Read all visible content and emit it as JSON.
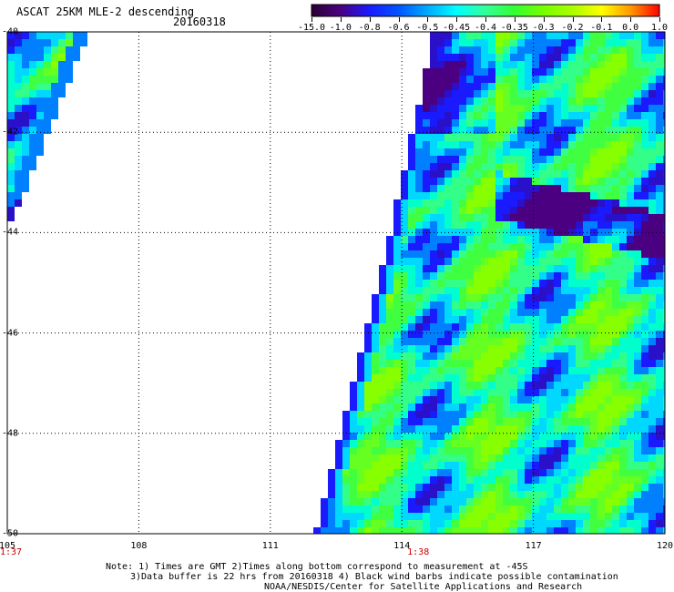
{
  "header": {
    "title": "ASCAT 25KM MLE-2 descending",
    "date": "20160318"
  },
  "colorbar": {
    "labels": [
      "-15.0",
      "-1.0",
      "-0.8",
      "-0.6",
      "-0.5",
      "-0.45",
      "-0.4",
      "-0.35",
      "-0.3",
      "-0.2",
      "-0.1",
      "0.0",
      "1.0"
    ],
    "colors": [
      "#2a0033",
      "#4b0082",
      "#1a1aff",
      "#0055ff",
      "#00aaff",
      "#00ffff",
      "#33ff99",
      "#33ff33",
      "#77ff00",
      "#aaff00",
      "#ffff00",
      "#ff9900",
      "#ff0000"
    ]
  },
  "map": {
    "lat_labels": [
      "-40",
      "-42",
      "-44",
      "-46",
      "-48",
      "-50"
    ],
    "lon_labels": [
      "105",
      "108",
      "111",
      "114",
      "117",
      "120"
    ],
    "time_labels": [
      "1:37",
      "1:38"
    ]
  },
  "notes": {
    "line1": "Note: 1) Times are GMT 2)Times along bottom correspond to measurement at -45S",
    "line2": "3)Data buffer is 22 hrs from 20160318 4) Black wind barbs indicate possible contamination",
    "line3": "NOAA/NESDIS/Center for Satellite Applications and Research"
  }
}
